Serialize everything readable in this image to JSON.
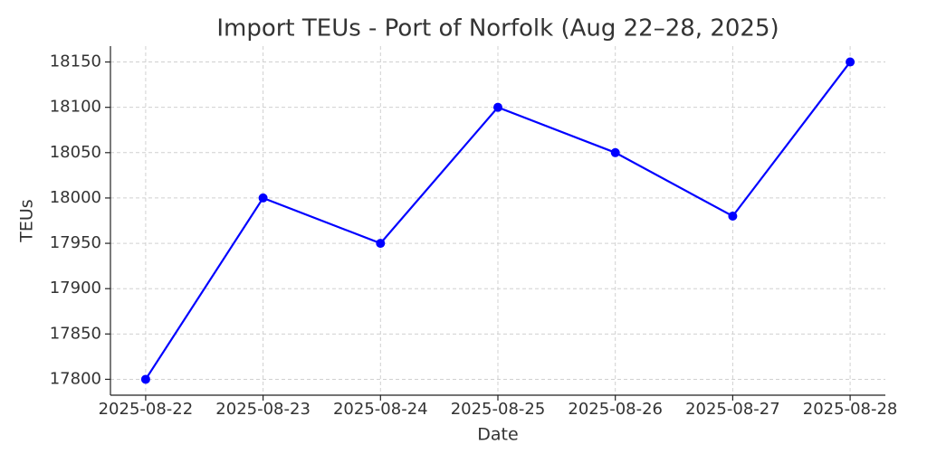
{
  "chart_data": {
    "type": "line",
    "title": "Import TEUs - Port of Norfolk (Aug 22–28, 2025)",
    "x_label": "Date",
    "y_label": "TEUs",
    "categories": [
      "2025-08-22",
      "2025-08-23",
      "2025-08-24",
      "2025-08-25",
      "2025-08-26",
      "2025-08-27",
      "2025-08-28"
    ],
    "series": [
      {
        "name": "Import TEUs",
        "color": "#0000ff",
        "values": [
          17800,
          18000,
          17950,
          18100,
          18050,
          17980,
          18150
        ]
      }
    ],
    "ylim": [
      17782.5,
      18167.5
    ],
    "yticks": [
      17800,
      17850,
      17900,
      17950,
      18000,
      18050,
      18100,
      18150
    ],
    "grid": true
  }
}
